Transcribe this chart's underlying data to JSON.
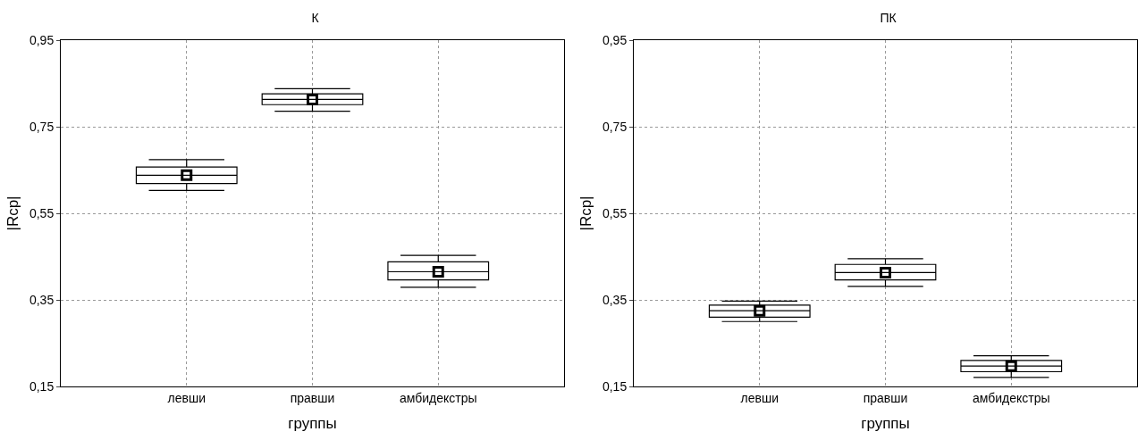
{
  "chart_data": [
    {
      "type": "box",
      "title": "К",
      "xlabel": "группы",
      "ylabel": "|Rср|",
      "categories": [
        "левши",
        "правши",
        "амбидекстры"
      ],
      "boxes": [
        {
          "low": 0.603,
          "q1": 0.619,
          "median": 0.638,
          "q3": 0.657,
          "high": 0.674,
          "mean": 0.638
        },
        {
          "low": 0.786,
          "q1": 0.801,
          "median": 0.813,
          "q3": 0.826,
          "high": 0.838,
          "mean": 0.813
        },
        {
          "low": 0.379,
          "q1": 0.396,
          "median": 0.415,
          "q3": 0.438,
          "high": 0.453,
          "mean": 0.415
        }
      ],
      "ylim": [
        0.15,
        0.95
      ],
      "yticks": [
        {
          "value": 0.15,
          "label": "0,15"
        },
        {
          "value": 0.35,
          "label": "0,35"
        },
        {
          "value": 0.55,
          "label": "0,55"
        },
        {
          "value": 0.75,
          "label": "0,75"
        },
        {
          "value": 0.95,
          "label": "0,95"
        }
      ],
      "grid": true,
      "marker": "square"
    },
    {
      "type": "box",
      "title": "ПК",
      "xlabel": "группы",
      "ylabel": "|Rср|",
      "categories": [
        "левши",
        "правши",
        "амбидекстры"
      ],
      "boxes": [
        {
          "low": 0.3,
          "q1": 0.31,
          "median": 0.325,
          "q3": 0.338,
          "high": 0.347,
          "mean": 0.325
        },
        {
          "low": 0.381,
          "q1": 0.396,
          "median": 0.413,
          "q3": 0.432,
          "high": 0.445,
          "mean": 0.413
        },
        {
          "low": 0.171,
          "q1": 0.184,
          "median": 0.197,
          "q3": 0.21,
          "high": 0.221,
          "mean": 0.197
        }
      ],
      "ylim": [
        0.15,
        0.95
      ],
      "yticks": [
        {
          "value": 0.15,
          "label": "0,15"
        },
        {
          "value": 0.35,
          "label": "0,35"
        },
        {
          "value": 0.55,
          "label": "0,55"
        },
        {
          "value": 0.75,
          "label": "0,75"
        },
        {
          "value": 0.95,
          "label": "0,95"
        }
      ],
      "grid": true,
      "marker": "square"
    }
  ]
}
